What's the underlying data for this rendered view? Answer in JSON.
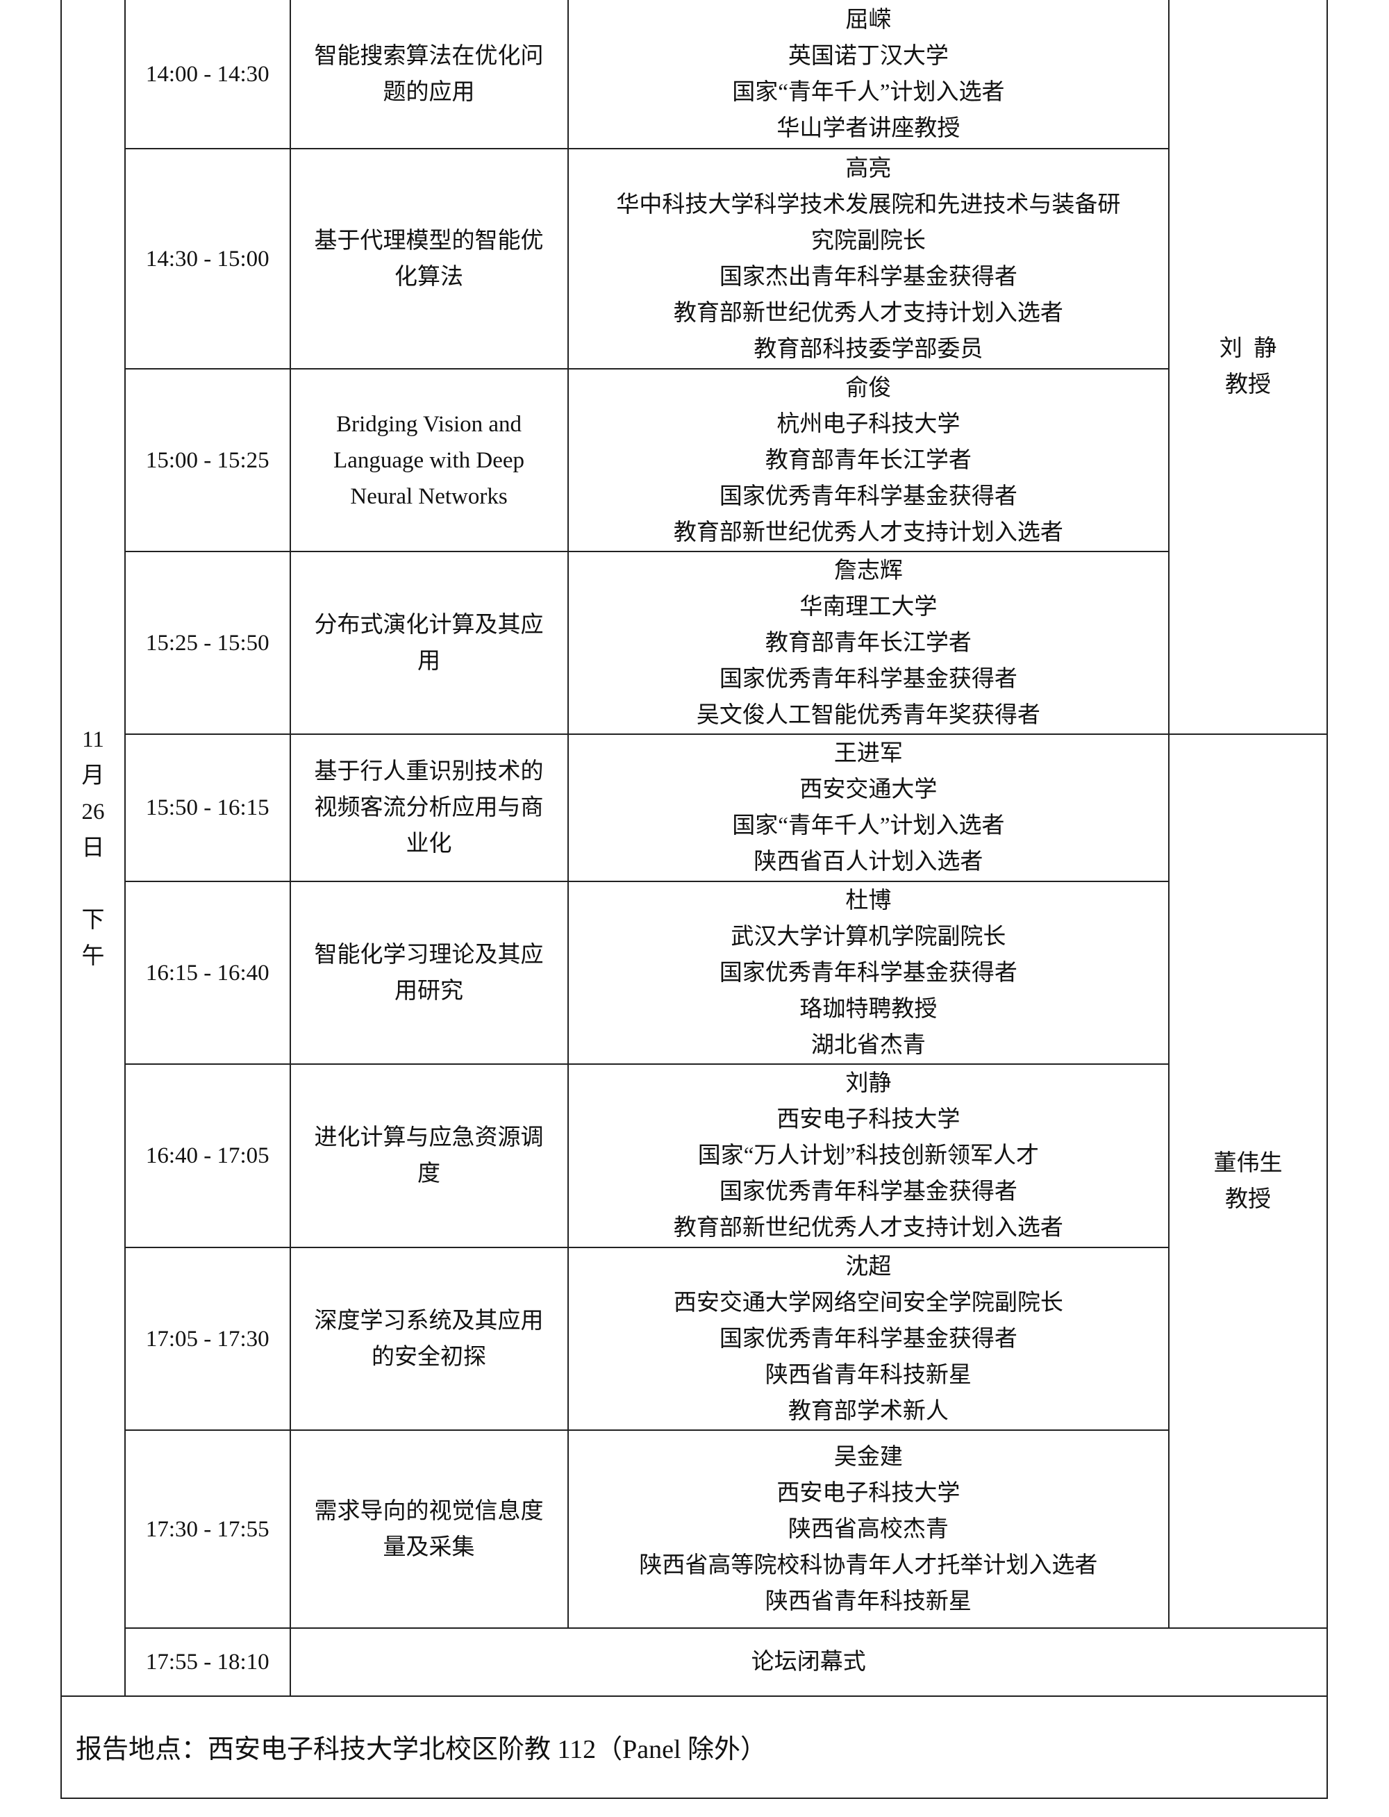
{
  "date_label": [
    "11",
    "月",
    "26",
    "日",
    "",
    "下",
    "午"
  ],
  "sessions": [
    {
      "time": "14:00 - 14:30",
      "title": "智能搜索算法在优化问题的应用",
      "speaker": [
        "屈嵘",
        "英国诺丁汉大学",
        "国家“青年千人”计划入选者",
        "华山学者讲座教授"
      ]
    },
    {
      "time": "14:30 - 15:00",
      "title": "基于代理模型的智能优化算法",
      "speaker": [
        "高亮",
        "华中科技大学科学技术发展院和先进技术与装备研",
        "究院副院长",
        "国家杰出青年科学基金获得者",
        "教育部新世纪优秀人才支持计划入选者",
        "教育部科技委学部委员"
      ]
    },
    {
      "time": "15:00 - 15:25",
      "title": "Bridging Vision and Language with Deep Neural Networks",
      "speaker": [
        "俞俊",
        "杭州电子科技大学",
        "教育部青年长江学者",
        "国家优秀青年科学基金获得者",
        "教育部新世纪优秀人才支持计划入选者"
      ]
    },
    {
      "time": "15:25 - 15:50",
      "title": "分布式演化计算及其应用",
      "speaker": [
        "詹志辉",
        "华南理工大学",
        "教育部青年长江学者",
        "国家优秀青年科学基金获得者",
        "吴文俊人工智能优秀青年奖获得者"
      ]
    },
    {
      "time": "15:50 - 16:15",
      "title": "基于行人重识别技术的视频客流分析应用与商业化",
      "speaker": [
        "王进军",
        "西安交通大学",
        "国家“青年千人”计划入选者",
        "陕西省百人计划入选者"
      ]
    },
    {
      "time": "16:15 - 16:40",
      "title": "智能化学习理论及其应用研究",
      "speaker": [
        "杜博",
        "武汉大学计算机学院副院长",
        "国家优秀青年科学基金获得者",
        "珞珈特聘教授",
        "湖北省杰青"
      ]
    },
    {
      "time": "16:40 - 17:05",
      "title": "进化计算与应急资源调度",
      "speaker": [
        "刘静",
        "西安电子科技大学",
        "国家“万人计划”科技创新领军人才",
        "国家优秀青年科学基金获得者",
        "教育部新世纪优秀人才支持计划入选者"
      ]
    },
    {
      "time": "17:05 - 17:30",
      "title": "深度学习系统及其应用的安全初探",
      "speaker": [
        "沈超",
        "西安交通大学网络空间安全学院副院长",
        "国家优秀青年科学基金获得者",
        "陕西省青年科技新星",
        "教育部学术新人"
      ]
    },
    {
      "time": "17:30 - 17:55",
      "title": "需求导向的视觉信息度量及采集",
      "speaker": [
        "吴金建",
        "西安电子科技大学",
        "陕西省高校杰青",
        "陕西省高等院校科协青年人才托举计划入选者",
        "陕西省青年科技新星"
      ]
    }
  ],
  "chairs": [
    {
      "name": "刘  静",
      "title": "教授"
    },
    {
      "name": "董伟生",
      "title": "教授"
    }
  ],
  "closing": {
    "time": "17:55 - 18:10",
    "title": "论坛闭幕式"
  },
  "footer": "报告地点：西安电子科技大学北校区阶教 112（Panel 除外）"
}
